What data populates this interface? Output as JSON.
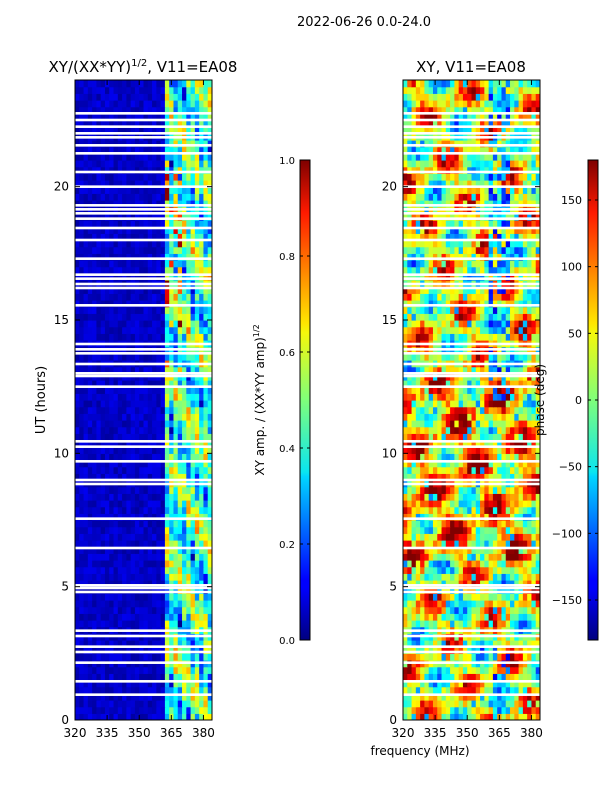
{
  "suptitle": "2022-06-26 0.0-24.0",
  "shared_xlabel": "frequency (MHz)",
  "colors": {
    "background": "#00007f",
    "gap": "#ffffff"
  },
  "chart_data": [
    {
      "type": "heatmap",
      "title_main": "XY/(XX*YY)",
      "title_exp": "1/2",
      "title_tail": ", V11=EA08",
      "xlabel": "",
      "ylabel": "UT (hours)",
      "xlim": [
        320,
        384
      ],
      "ylim": [
        0,
        24
      ],
      "xticks": [
        320,
        335,
        350,
        365,
        380
      ],
      "yticks": [
        0,
        5,
        10,
        15,
        20
      ],
      "quantity": "amplitude",
      "colorbar": {
        "label_main": "XY amp. / (XX*YY amp)",
        "label_exp": "1/2",
        "range": [
          0,
          1
        ],
        "ticks": [
          "0.0",
          "0.2",
          "0.4",
          "0.6",
          "0.8",
          "1.0"
        ],
        "tick_values": [
          0,
          0.2,
          0.4,
          0.6,
          0.8,
          1.0
        ]
      }
    },
    {
      "type": "heatmap",
      "title_main": "XY, V11=EA08",
      "title_exp": "",
      "title_tail": "",
      "xlabel": "frequency (MHz)",
      "ylabel": "",
      "xlim": [
        320,
        384
      ],
      "ylim": [
        0,
        24
      ],
      "xticks": [
        320,
        335,
        350,
        365,
        380
      ],
      "yticks": [
        0,
        5,
        10,
        15,
        20
      ],
      "quantity": "phase",
      "colorbar": {
        "label_main": "phase (deg)",
        "label_exp": "",
        "range": [
          -180,
          180
        ],
        "ticks": [
          "−150",
          "−100",
          "−50",
          "0",
          "50",
          "100",
          "150"
        ],
        "tick_values": [
          -150,
          -100,
          -50,
          0,
          50,
          100,
          150
        ]
      }
    }
  ],
  "flagged_hours": [
    0.95,
    1.45,
    2.15,
    2.55,
    2.75,
    3.15,
    3.35,
    4.8,
    4.95,
    5.05,
    6.45,
    7.55,
    8.85,
    9.0,
    9.7,
    10.25,
    10.45,
    12.5,
    12.9,
    13.0,
    13.35,
    13.75,
    13.9,
    14.1,
    15.55,
    16.2,
    16.35,
    16.55,
    16.7,
    17.3,
    18.0,
    18.45,
    18.8,
    19.0,
    19.15,
    19.3,
    20.0,
    20.55,
    21.25,
    21.55,
    21.85,
    22.0,
    22.25,
    22.5,
    22.75
  ]
}
